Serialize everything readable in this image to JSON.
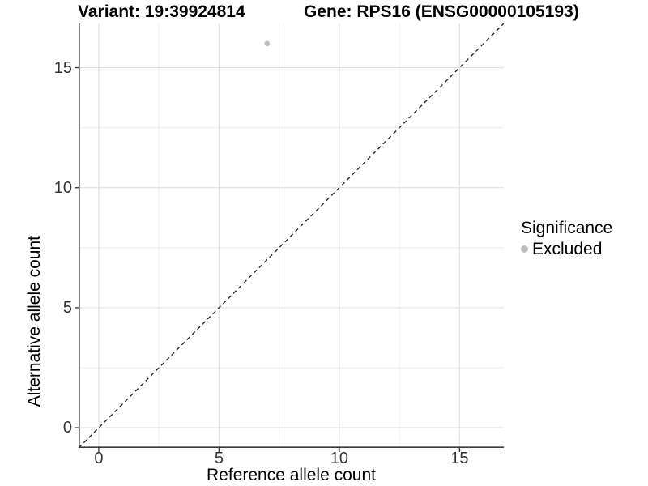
{
  "chart_data": {
    "type": "scatter",
    "titles": {
      "variant": "Variant: 19:39924814",
      "gene": "Gene: RPS16 (ENSG00000105193)"
    },
    "xlabel": "Reference allele count",
    "ylabel": "Alternative allele count",
    "x_ticks": [
      0,
      5,
      10,
      15
    ],
    "y_ticks": [
      0,
      5,
      10,
      15
    ],
    "x_minor": [
      2.5,
      7.5,
      12.5
    ],
    "y_minor": [
      2.5,
      7.5,
      12.5
    ],
    "xlim": [
      -0.84,
      16.84
    ],
    "ylim": [
      -0.84,
      16.84
    ],
    "grid": true,
    "points": [
      {
        "x": 7,
        "y": 16,
        "series": "Excluded"
      }
    ],
    "identity_line": {
      "style": "dashed",
      "slope": 1,
      "intercept": 0
    },
    "legend": {
      "position": "right",
      "title": "Significance",
      "items": [
        {
          "label": "Excluded",
          "color": "#bdbdbd"
        }
      ]
    },
    "colors": {
      "point": "#c1c1c1",
      "legend_marker": "#bdbdbd",
      "grid_major": "#e0e0e0",
      "grid_minor": "#ebebeb",
      "axis_line": "#3c3c3c",
      "tick_mark": "#3c3c3c",
      "identity_line": "#1a1a1a",
      "background": "#ffffff"
    }
  }
}
